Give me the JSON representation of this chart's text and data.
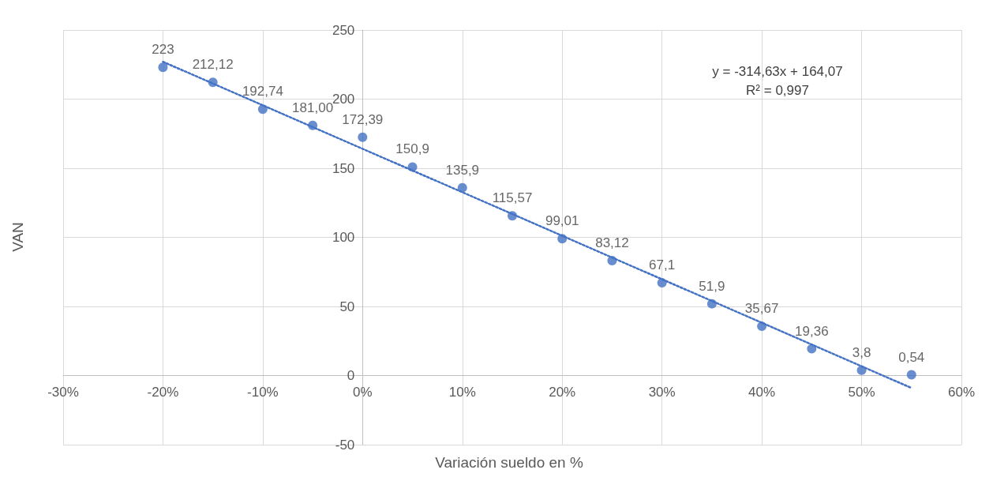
{
  "chart_data": {
    "type": "scatter",
    "xlabel": "Variación sueldo en %",
    "ylabel": "VAN",
    "x": [
      -0.2,
      -0.15,
      -0.1,
      -0.05,
      0,
      0.05,
      0.1,
      0.15,
      0.2,
      0.25,
      0.3,
      0.35,
      0.4,
      0.45,
      0.5,
      0.55
    ],
    "series": [
      {
        "color": "#4472c4",
        "marker": "circle",
        "values": [
          223,
          212.12,
          192.74,
          181,
          172.39,
          150.9,
          135.9,
          115.57,
          99.01,
          83.12,
          67.1,
          51.9,
          35.67,
          19.36,
          3.8,
          0.54
        ],
        "value_labels": [
          "223",
          "212,12",
          "192,74",
          "181,00",
          "172,39",
          "150,9",
          "135,9",
          "115,57",
          "99,01",
          "83,12",
          "67,1",
          "51,9",
          "35,67",
          "19,36",
          "3,8",
          "0,54"
        ]
      },
      {
        "type": "line",
        "color": "#4472c4",
        "line_style": "dotted",
        "marker": "none",
        "x": [
          -0.2,
          0.55
        ],
        "values": [
          227.0,
          -9.0
        ]
      }
    ],
    "xlim": [
      -0.3,
      0.6
    ],
    "xticks": [
      {
        "value": -0.3,
        "label": "-30%"
      },
      {
        "value": -0.2,
        "label": "-20%"
      },
      {
        "value": -0.1,
        "label": "-10%"
      },
      {
        "value": 0,
        "label": "0%"
      },
      {
        "value": 0.1,
        "label": "10%"
      },
      {
        "value": 0.2,
        "label": "20%"
      },
      {
        "value": 0.3,
        "label": "30%"
      },
      {
        "value": 0.4,
        "label": "40%"
      },
      {
        "value": 0.5,
        "label": "50%"
      },
      {
        "value": 0.6,
        "label": "60%"
      }
    ],
    "ylim": [
      -50,
      250
    ],
    "yticks": [
      -50,
      0,
      50,
      100,
      150,
      200,
      250
    ],
    "grid": true,
    "annotations": [
      "y = -314,63x + 164,07",
      "R² = 0,997"
    ]
  }
}
